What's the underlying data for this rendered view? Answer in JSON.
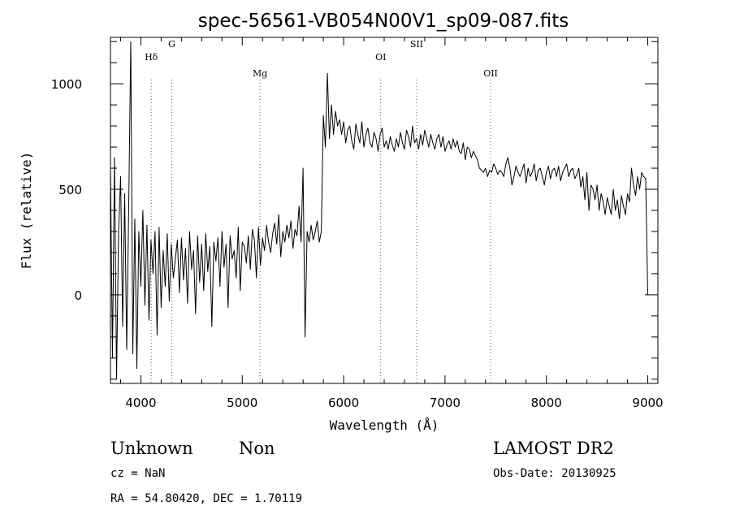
{
  "chart_data": {
    "type": "line",
    "title": "spec-56561-VB054N00V1_sp09-087.fits",
    "xlabel": "Wavelength (Å)",
    "ylabel": "Flux (relative)",
    "xlim": [
      3700,
      9100
    ],
    "ylim": [
      -420,
      1220
    ],
    "xticks": [
      4000,
      5000,
      6000,
      7000,
      8000,
      9000
    ],
    "yticks": [
      0,
      500,
      1000
    ],
    "grid": false,
    "line_color": "#000000",
    "marker_color": "#c0392b",
    "spectral_lines": [
      {
        "name": "Hδ",
        "x": 4102
      },
      {
        "name": "G",
        "x": 4305
      },
      {
        "name": "Mg",
        "x": 5175
      },
      {
        "name": "OI",
        "x": 6366
      },
      {
        "name": "SII",
        "x": 6720
      },
      {
        "name": "OII",
        "x": 7450
      }
    ],
    "series": [
      {
        "x": [
          3700,
          3720,
          3740,
          3760,
          3780,
          3800,
          3820,
          3840,
          3860,
          3880,
          3900,
          3920,
          3940,
          3960,
          3980,
          4000,
          4020,
          4040,
          4060,
          4080,
          4100,
          4120,
          4140,
          4160,
          4180,
          4200,
          4220,
          4240,
          4260,
          4280,
          4300,
          4320,
          4340,
          4360,
          4380,
          4400,
          4420,
          4440,
          4460,
          4480,
          4500,
          4520,
          4540,
          4560,
          4580,
          4600,
          4620,
          4640,
          4660,
          4680,
          4700,
          4720,
          4740,
          4760,
          4780,
          4800,
          4820,
          4840,
          4860,
          4880,
          4900,
          4920,
          4940,
          4960,
          4980,
          5000,
          5020,
          5040,
          5060,
          5080,
          5100,
          5120,
          5140,
          5160,
          5180,
          5200,
          5220,
          5240,
          5260,
          5280,
          5300,
          5320,
          5340,
          5360,
          5380,
          5400,
          5420,
          5440,
          5460,
          5480,
          5500,
          5520,
          5540,
          5560,
          5580,
          5600,
          5620,
          5640,
          5660,
          5680,
          5700,
          5720,
          5740,
          5760,
          5780,
          5800,
          5820,
          5840,
          5860,
          5880,
          5900,
          5920,
          5940,
          5960,
          5980,
          6000,
          6020,
          6040,
          6060,
          6080,
          6100,
          6120,
          6140,
          6160,
          6180,
          6200,
          6220,
          6240,
          6260,
          6280,
          6300,
          6320,
          6340,
          6360,
          6380,
          6400,
          6420,
          6440,
          6460,
          6480,
          6500,
          6520,
          6540,
          6560,
          6580,
          6600,
          6620,
          6640,
          6660,
          6680,
          6700,
          6720,
          6740,
          6760,
          6780,
          6800,
          6820,
          6840,
          6860,
          6880,
          6900,
          6920,
          6940,
          6960,
          6980,
          7000,
          7020,
          7040,
          7060,
          7080,
          7100,
          7120,
          7140,
          7160,
          7180,
          7200,
          7220,
          7240,
          7260,
          7280,
          7300,
          7320,
          7340,
          7360,
          7380,
          7400,
          7420,
          7440,
          7460,
          7480,
          7500,
          7520,
          7540,
          7560,
          7580,
          7600,
          7620,
          7640,
          7660,
          7680,
          7700,
          7720,
          7740,
          7760,
          7780,
          7800,
          7820,
          7840,
          7860,
          7880,
          7900,
          7920,
          7940,
          7960,
          7980,
          8000,
          8020,
          8040,
          8060,
          8080,
          8100,
          8120,
          8140,
          8160,
          8180,
          8200,
          8220,
          8240,
          8260,
          8280,
          8300,
          8320,
          8340,
          8360,
          8380,
          8400,
          8420,
          8440,
          8460,
          8480,
          8500,
          8520,
          8540,
          8560,
          8580,
          8600,
          8620,
          8640,
          8660,
          8680,
          8700,
          8720,
          8740,
          8760,
          8780,
          8800,
          8820,
          8840,
          8860,
          8880,
          8900,
          8920,
          8940,
          8960,
          8980,
          9000
        ],
        "y": [
          600,
          -300,
          650,
          -400,
          300,
          560,
          -150,
          480,
          -260,
          420,
          1200,
          -280,
          360,
          -350,
          300,
          40,
          400,
          -50,
          330,
          -120,
          260,
          100,
          300,
          -190,
          320,
          -60,
          210,
          40,
          290,
          -30,
          240,
          80,
          170,
          260,
          10,
          270,
          70,
          220,
          -40,
          300,
          120,
          210,
          -90,
          280,
          60,
          240,
          20,
          290,
          110,
          230,
          -150,
          250,
          160,
          270,
          40,
          300,
          130,
          240,
          -60,
          280,
          170,
          210,
          80,
          320,
          20,
          250,
          230,
          150,
          280,
          120,
          310,
          260,
          80,
          320,
          140,
          270,
          210,
          330,
          250,
          200,
          290,
          340,
          240,
          380,
          180,
          300,
          250,
          330,
          270,
          350,
          220,
          310,
          280,
          420,
          250,
          600,
          -200,
          300,
          250,
          330,
          260,
          300,
          350,
          250,
          300,
          850,
          700,
          1050,
          740,
          900,
          760,
          870,
          800,
          830,
          760,
          820,
          720,
          780,
          800,
          730,
          690,
          810,
          760,
          720,
          820,
          700,
          760,
          790,
          720,
          700,
          770,
          740,
          680,
          760,
          790,
          700,
          730,
          690,
          750,
          710,
          680,
          740,
          700,
          770,
          720,
          690,
          780,
          750,
          700,
          800,
          720,
          740,
          690,
          760,
          710,
          780,
          740,
          700,
          760,
          720,
          690,
          740,
          760,
          700,
          750,
          680,
          710,
          730,
          690,
          740,
          700,
          730,
          680,
          670,
          720,
          640,
          700,
          690,
          650,
          680,
          660,
          640,
          600,
          590,
          580,
          600,
          560,
          590,
          580,
          620,
          600,
          570,
          590,
          580,
          560,
          620,
          650,
          600,
          520,
          560,
          610,
          580,
          560,
          590,
          620,
          530,
          600,
          560,
          580,
          620,
          540,
          590,
          600,
          560,
          520,
          580,
          610,
          550,
          590,
          600,
          560,
          610,
          540,
          580,
          600,
          620,
          560,
          590,
          600,
          550,
          570,
          600,
          510,
          560,
          450,
          580,
          400,
          520,
          500,
          450,
          520,
          400,
          480,
          440,
          380,
          460,
          420,
          380,
          500,
          400,
          450,
          360,
          470,
          420,
          380,
          480,
          440,
          600,
          520,
          470,
          560,
          500,
          580,
          560,
          550,
          0
        ]
      }
    ]
  },
  "info": {
    "class": "Unknown",
    "subclass": "Non",
    "survey": "LAMOST DR2",
    "cz": "cz = NaN",
    "obs_date": "Obs-Date: 20130925",
    "radec": "RA =  54.80420, DEC =   1.70119"
  }
}
